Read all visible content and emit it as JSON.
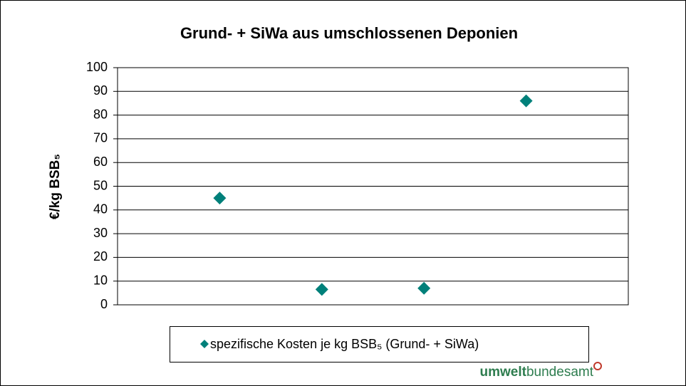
{
  "chart_data": {
    "type": "scatter",
    "title": "Grund- + SiWa aus umschlossenen Deponien",
    "y_label": "€/kg BSB₅",
    "x": [
      1,
      2,
      3,
      4
    ],
    "xlim": [
      0,
      5
    ],
    "series": [
      {
        "name": "spezifische Kosten je kg BSB₅ (Grund- + SiWa)",
        "color": "#00807a",
        "values": [
          45,
          6.5,
          7,
          86
        ]
      }
    ],
    "ylim": [
      0,
      100
    ],
    "yticks": [
      0,
      10,
      20,
      30,
      40,
      50,
      60,
      70,
      80,
      90,
      100
    ],
    "grid": true,
    "legend": "bottom",
    "logo": {
      "bold": "umwelt",
      "regular": "bundesamt"
    }
  }
}
